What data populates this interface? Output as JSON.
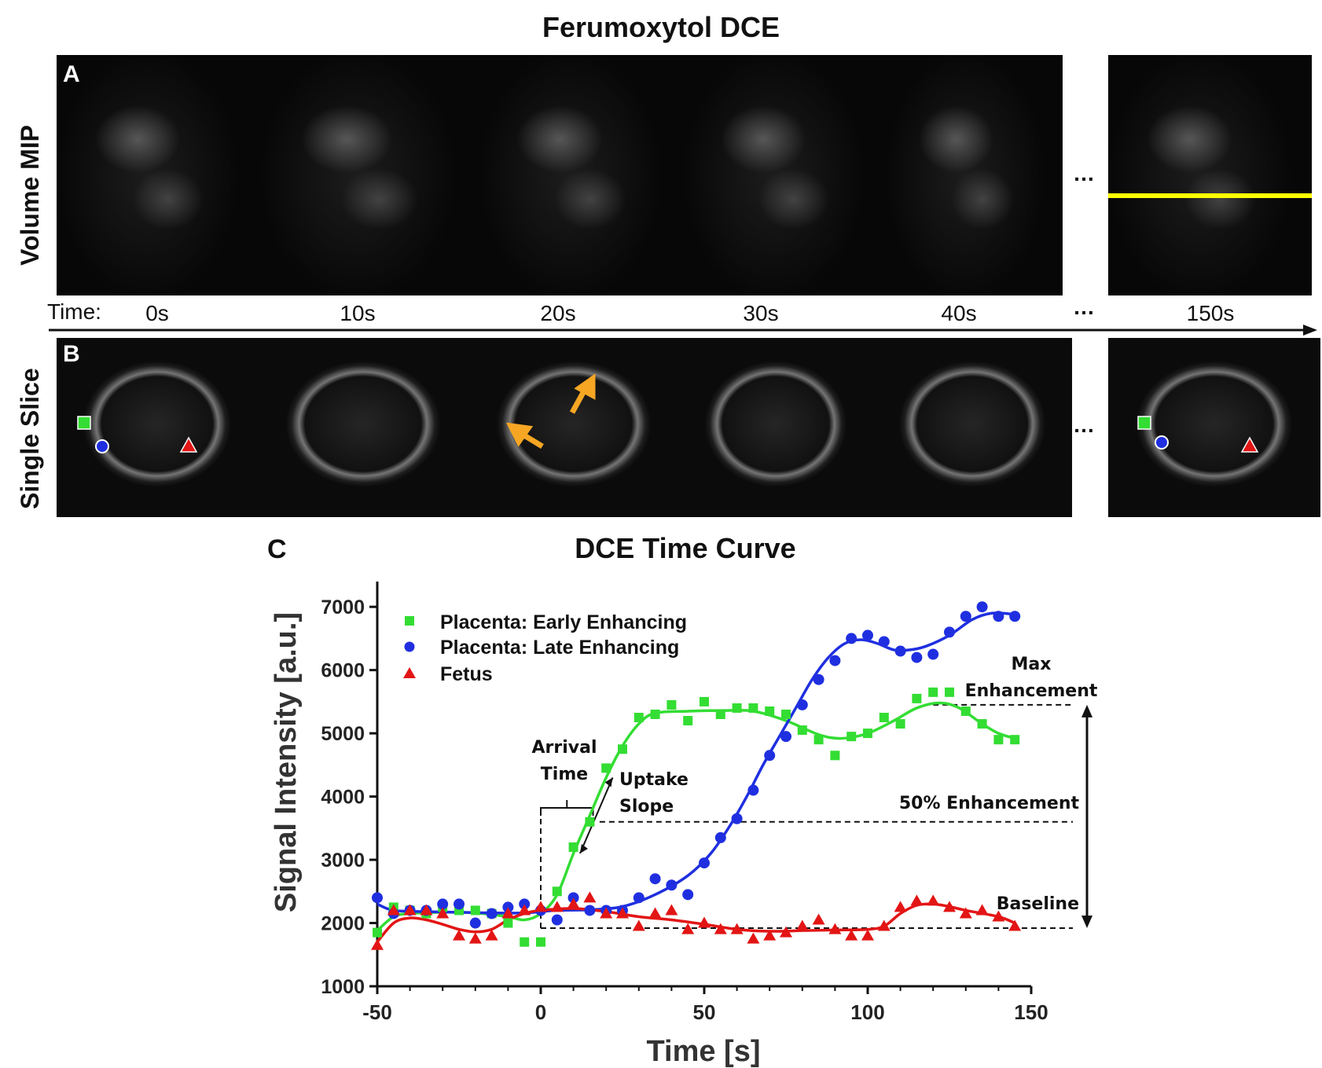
{
  "figure": {
    "title": "Ferumoxytol DCE",
    "panel_a": "A",
    "panel_b": "B",
    "panel_c": "C",
    "row_a_label": "Volume MIP",
    "row_b_label": "Single Slice",
    "time_prefix": "Time:",
    "time_labels": [
      "0s",
      "10s",
      "20s",
      "30s",
      "40s",
      "150s"
    ],
    "ellipsis": "…"
  },
  "colors": {
    "green": "#33dd33",
    "blue": "#1f2fe0",
    "red": "#e31515",
    "yellow": "#ffff00",
    "orange": "#f5a623"
  },
  "chart_data": {
    "type": "scatter",
    "title": "DCE Time Curve",
    "xlabel": "Time [s]",
    "ylabel": "Signal Intensity [a.u.]",
    "xlim": [
      -50,
      150
    ],
    "ylim": [
      1000,
      7400
    ],
    "xticks": [
      -50,
      0,
      50,
      100,
      150
    ],
    "yticks": [
      1000,
      2000,
      3000,
      4000,
      5000,
      6000,
      7000
    ],
    "legend_position": "top-left",
    "series": [
      {
        "name": "Placenta: Early Enhancing",
        "color": "#33dd33",
        "marker": "square",
        "points": [
          [
            -50,
            1850
          ],
          [
            -45,
            2250
          ],
          [
            -40,
            2200
          ],
          [
            -35,
            2150
          ],
          [
            -30,
            2250
          ],
          [
            -25,
            2200
          ],
          [
            -20,
            2200
          ],
          [
            -15,
            2150
          ],
          [
            -10,
            2000
          ],
          [
            -5,
            1700
          ],
          [
            0,
            1700
          ],
          [
            5,
            2500
          ],
          [
            10,
            3200
          ],
          [
            15,
            3600
          ],
          [
            20,
            4450
          ],
          [
            25,
            4750
          ],
          [
            30,
            5250
          ],
          [
            35,
            5300
          ],
          [
            40,
            5450
          ],
          [
            45,
            5200
          ],
          [
            50,
            5500
          ],
          [
            55,
            5300
          ],
          [
            60,
            5400
          ],
          [
            65,
            5400
          ],
          [
            70,
            5350
          ],
          [
            75,
            5300
          ],
          [
            80,
            5050
          ],
          [
            85,
            4900
          ],
          [
            90,
            4650
          ],
          [
            95,
            4950
          ],
          [
            100,
            5000
          ],
          [
            105,
            5250
          ],
          [
            110,
            5150
          ],
          [
            115,
            5550
          ],
          [
            120,
            5650
          ],
          [
            125,
            5650
          ],
          [
            130,
            5350
          ],
          [
            135,
            5150
          ],
          [
            140,
            4900
          ],
          [
            145,
            4900
          ]
        ],
        "fit": [
          [
            -50,
            1880
          ],
          [
            -45,
            2100
          ],
          [
            -40,
            2150
          ],
          [
            -30,
            2170
          ],
          [
            -20,
            2160
          ],
          [
            -10,
            2100
          ],
          [
            -5,
            2050
          ],
          [
            0,
            2150
          ],
          [
            5,
            2450
          ],
          [
            10,
            3100
          ],
          [
            15,
            3700
          ],
          [
            20,
            4300
          ],
          [
            25,
            4800
          ],
          [
            30,
            5150
          ],
          [
            35,
            5320
          ],
          [
            45,
            5350
          ],
          [
            55,
            5360
          ],
          [
            65,
            5350
          ],
          [
            75,
            5200
          ],
          [
            85,
            4980
          ],
          [
            92,
            4920
          ],
          [
            100,
            5000
          ],
          [
            108,
            5200
          ],
          [
            115,
            5400
          ],
          [
            122,
            5480
          ],
          [
            128,
            5400
          ],
          [
            135,
            5150
          ],
          [
            140,
            5000
          ],
          [
            145,
            4920
          ]
        ]
      },
      {
        "name": "Placenta: Late Enhancing",
        "color": "#1f2fe0",
        "marker": "circle",
        "points": [
          [
            -50,
            2400
          ],
          [
            -45,
            2150
          ],
          [
            -40,
            2200
          ],
          [
            -35,
            2200
          ],
          [
            -30,
            2300
          ],
          [
            -25,
            2300
          ],
          [
            -20,
            2000
          ],
          [
            -15,
            2150
          ],
          [
            -10,
            2250
          ],
          [
            -5,
            2300
          ],
          [
            0,
            2200
          ],
          [
            5,
            2050
          ],
          [
            10,
            2400
          ],
          [
            15,
            2200
          ],
          [
            20,
            2200
          ],
          [
            25,
            2200
          ],
          [
            30,
            2400
          ],
          [
            35,
            2700
          ],
          [
            40,
            2600
          ],
          [
            45,
            2450
          ],
          [
            50,
            2950
          ],
          [
            55,
            3350
          ],
          [
            60,
            3650
          ],
          [
            65,
            4100
          ],
          [
            70,
            4650
          ],
          [
            75,
            4950
          ],
          [
            80,
            5450
          ],
          [
            85,
            5850
          ],
          [
            90,
            6150
          ],
          [
            95,
            6500
          ],
          [
            100,
            6550
          ],
          [
            105,
            6450
          ],
          [
            110,
            6300
          ],
          [
            115,
            6200
          ],
          [
            120,
            6250
          ],
          [
            125,
            6600
          ],
          [
            130,
            6850
          ],
          [
            135,
            7000
          ],
          [
            140,
            6850
          ],
          [
            145,
            6850
          ]
        ],
        "fit": [
          [
            -50,
            2300
          ],
          [
            -45,
            2200
          ],
          [
            -35,
            2180
          ],
          [
            -25,
            2170
          ],
          [
            -15,
            2160
          ],
          [
            -5,
            2160
          ],
          [
            5,
            2200
          ],
          [
            15,
            2210
          ],
          [
            25,
            2260
          ],
          [
            35,
            2450
          ],
          [
            45,
            2750
          ],
          [
            52,
            3100
          ],
          [
            58,
            3550
          ],
          [
            63,
            4000
          ],
          [
            68,
            4500
          ],
          [
            73,
            4950
          ],
          [
            78,
            5400
          ],
          [
            83,
            5850
          ],
          [
            88,
            6200
          ],
          [
            93,
            6420
          ],
          [
            98,
            6480
          ],
          [
            103,
            6420
          ],
          [
            108,
            6320
          ],
          [
            113,
            6320
          ],
          [
            118,
            6380
          ],
          [
            125,
            6550
          ],
          [
            132,
            6800
          ],
          [
            138,
            6900
          ],
          [
            145,
            6880
          ]
        ]
      },
      {
        "name": "Fetus",
        "color": "#e31515",
        "marker": "triangle",
        "points": [
          [
            -50,
            1650
          ],
          [
            -45,
            2200
          ],
          [
            -40,
            2200
          ],
          [
            -35,
            2200
          ],
          [
            -30,
            2150
          ],
          [
            -25,
            1800
          ],
          [
            -20,
            1750
          ],
          [
            -15,
            1800
          ],
          [
            -10,
            2150
          ],
          [
            -5,
            2200
          ],
          [
            0,
            2250
          ],
          [
            5,
            2250
          ],
          [
            10,
            2300
          ],
          [
            15,
            2400
          ],
          [
            20,
            2150
          ],
          [
            25,
            2150
          ],
          [
            30,
            1950
          ],
          [
            35,
            2150
          ],
          [
            40,
            2200
          ],
          [
            45,
            1900
          ],
          [
            50,
            2000
          ],
          [
            55,
            1900
          ],
          [
            60,
            1900
          ],
          [
            65,
            1750
          ],
          [
            70,
            1800
          ],
          [
            75,
            1850
          ],
          [
            80,
            1950
          ],
          [
            85,
            2050
          ],
          [
            90,
            1900
          ],
          [
            95,
            1800
          ],
          [
            100,
            1800
          ],
          [
            105,
            1950
          ],
          [
            110,
            2250
          ],
          [
            115,
            2350
          ],
          [
            120,
            2350
          ],
          [
            125,
            2250
          ],
          [
            130,
            2150
          ],
          [
            135,
            2200
          ],
          [
            140,
            2100
          ],
          [
            145,
            1950
          ]
        ],
        "fit": [
          [
            -50,
            1700
          ],
          [
            -45,
            2000
          ],
          [
            -40,
            2080
          ],
          [
            -35,
            2050
          ],
          [
            -30,
            1980
          ],
          [
            -25,
            1900
          ],
          [
            -20,
            1860
          ],
          [
            -15,
            1900
          ],
          [
            -10,
            2050
          ],
          [
            -5,
            2150
          ],
          [
            0,
            2200
          ],
          [
            10,
            2230
          ],
          [
            20,
            2180
          ],
          [
            30,
            2100
          ],
          [
            40,
            2050
          ],
          [
            50,
            1980
          ],
          [
            60,
            1900
          ],
          [
            70,
            1870
          ],
          [
            80,
            1880
          ],
          [
            90,
            1890
          ],
          [
            100,
            1900
          ],
          [
            105,
            1950
          ],
          [
            110,
            2150
          ],
          [
            115,
            2280
          ],
          [
            120,
            2300
          ],
          [
            125,
            2260
          ],
          [
            130,
            2200
          ],
          [
            140,
            2100
          ],
          [
            145,
            2000
          ]
        ]
      }
    ],
    "annotations": {
      "arrival": [
        "Arrival",
        "Time"
      ],
      "uptake": [
        "Uptake",
        "Slope"
      ],
      "max": [
        "Max",
        "Enhancement"
      ],
      "half": "50% Enhancement",
      "baseline": "Baseline"
    },
    "levels": {
      "max": 5450,
      "half": 3600,
      "baseline": 1920
    },
    "arrival_range": [
      0,
      16
    ]
  }
}
